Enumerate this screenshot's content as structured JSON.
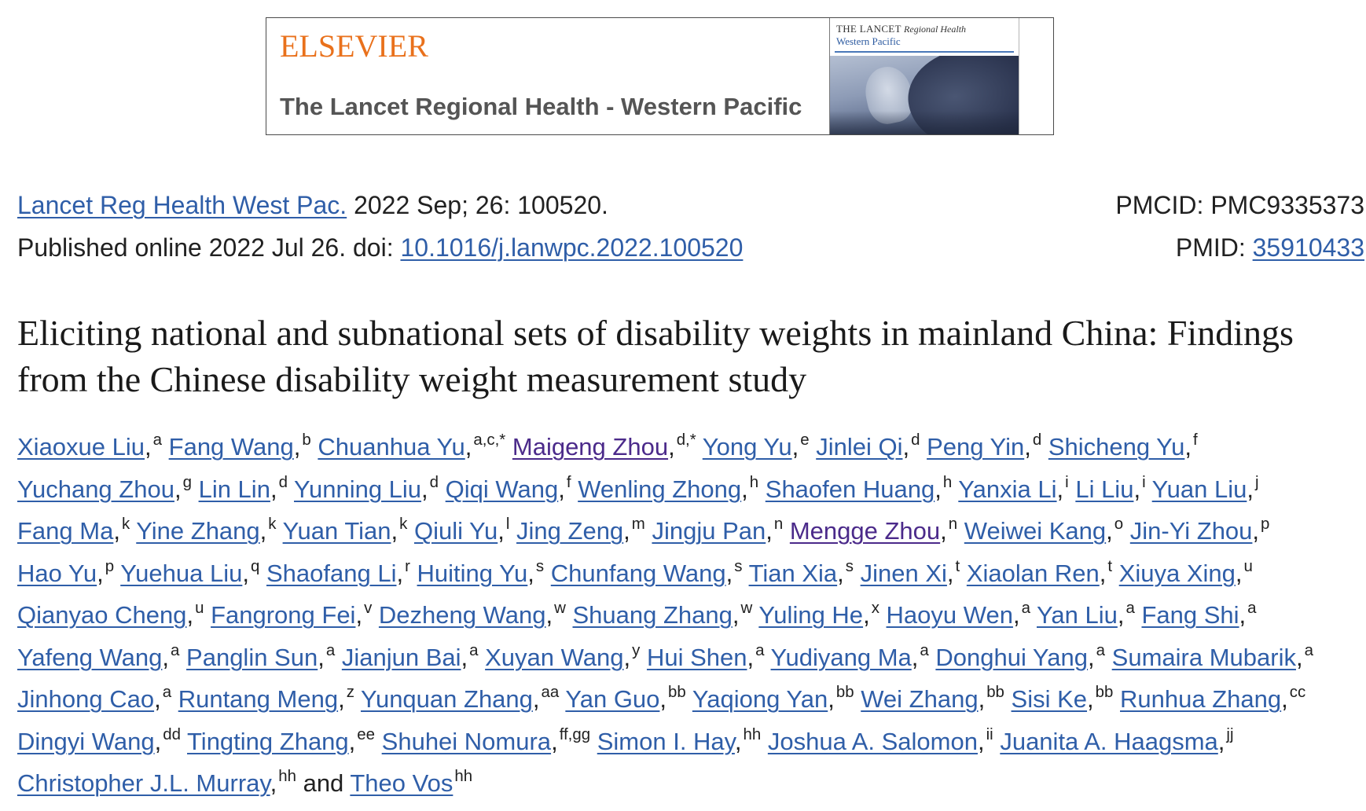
{
  "colors": {
    "link": "#2f5ea8",
    "visited_link": "#4b2a8a",
    "publisher_orange": "#e9711c",
    "journal_gray": "#555555",
    "cover_blue": "#2c5aa0"
  },
  "banner": {
    "publisher_logo": "ELSEVIER",
    "journal_name": "The Lancet Regional Health - Western Pacific",
    "cover": {
      "masthead_caps": "THE LANCET",
      "masthead_italic": "Regional Health",
      "edition": "Western Pacific"
    }
  },
  "citation": {
    "journal_link": "Lancet Reg Health West Pac.",
    "issue": "2022 Sep; 26: 100520.",
    "published": "Published online 2022 Jul 26. doi:",
    "doi": "10.1016/j.lanwpc.2022.100520",
    "pmcid": "PMCID: PMC9335373",
    "pmid_label": "PMID:",
    "pmid": "35910433"
  },
  "title": "Eliciting national and subnational sets of disability weights in mainland China: Findings from the Chinese disability weight measurement study",
  "author_separator": ",",
  "author_conjunction": "and",
  "authors": [
    {
      "name": "Xiaoxue Liu",
      "aff": "a"
    },
    {
      "name": "Fang Wang",
      "aff": "b"
    },
    {
      "name": "Chuanhua Yu",
      "aff": "a,c,*"
    },
    {
      "name": "Maigeng Zhou",
      "aff": "d,*",
      "visited": true
    },
    {
      "name": "Yong Yu",
      "aff": "e"
    },
    {
      "name": "Jinlei Qi",
      "aff": "d"
    },
    {
      "name": "Peng Yin",
      "aff": "d"
    },
    {
      "name": "Shicheng Yu",
      "aff": "f"
    },
    {
      "name": "Yuchang Zhou",
      "aff": "g"
    },
    {
      "name": "Lin Lin",
      "aff": "d"
    },
    {
      "name": "Yunning Liu",
      "aff": "d"
    },
    {
      "name": "Qiqi Wang",
      "aff": "f"
    },
    {
      "name": "Wenling Zhong",
      "aff": "h"
    },
    {
      "name": "Shaofen Huang",
      "aff": "h"
    },
    {
      "name": "Yanxia Li",
      "aff": "i"
    },
    {
      "name": "Li Liu",
      "aff": "i"
    },
    {
      "name": "Yuan Liu",
      "aff": "j"
    },
    {
      "name": "Fang Ma",
      "aff": "k"
    },
    {
      "name": "Yine Zhang",
      "aff": "k"
    },
    {
      "name": "Yuan Tian",
      "aff": "k"
    },
    {
      "name": "Qiuli Yu",
      "aff": "l"
    },
    {
      "name": "Jing Zeng",
      "aff": "m"
    },
    {
      "name": "Jingju Pan",
      "aff": "n"
    },
    {
      "name": "Mengge Zhou",
      "aff": "n",
      "visited": true
    },
    {
      "name": "Weiwei Kang",
      "aff": "o"
    },
    {
      "name": "Jin-Yi Zhou",
      "aff": "p"
    },
    {
      "name": "Hao Yu",
      "aff": "p"
    },
    {
      "name": "Yuehua Liu",
      "aff": "q"
    },
    {
      "name": "Shaofang Li",
      "aff": "r"
    },
    {
      "name": "Huiting Yu",
      "aff": "s"
    },
    {
      "name": "Chunfang Wang",
      "aff": "s"
    },
    {
      "name": "Tian Xia",
      "aff": "s"
    },
    {
      "name": "Jinen Xi",
      "aff": "t"
    },
    {
      "name": "Xiaolan Ren",
      "aff": "t"
    },
    {
      "name": "Xiuya Xing",
      "aff": "u"
    },
    {
      "name": "Qianyao Cheng",
      "aff": "u"
    },
    {
      "name": "Fangrong Fei",
      "aff": "v"
    },
    {
      "name": "Dezheng Wang",
      "aff": "w"
    },
    {
      "name": "Shuang Zhang",
      "aff": "w"
    },
    {
      "name": "Yuling He",
      "aff": "x"
    },
    {
      "name": "Haoyu Wen",
      "aff": "a"
    },
    {
      "name": "Yan Liu",
      "aff": "a"
    },
    {
      "name": "Fang Shi",
      "aff": "a"
    },
    {
      "name": "Yafeng Wang",
      "aff": "a"
    },
    {
      "name": "Panglin Sun",
      "aff": "a"
    },
    {
      "name": "Jianjun Bai",
      "aff": "a"
    },
    {
      "name": "Xuyan Wang",
      "aff": "y"
    },
    {
      "name": "Hui Shen",
      "aff": "a"
    },
    {
      "name": "Yudiyang Ma",
      "aff": "a"
    },
    {
      "name": "Donghui Yang",
      "aff": "a"
    },
    {
      "name": "Sumaira Mubarik",
      "aff": "a"
    },
    {
      "name": "Jinhong Cao",
      "aff": "a"
    },
    {
      "name": "Runtang Meng",
      "aff": "z"
    },
    {
      "name": "Yunquan Zhang",
      "aff": "aa"
    },
    {
      "name": "Yan Guo",
      "aff": "bb"
    },
    {
      "name": "Yaqiong Yan",
      "aff": "bb"
    },
    {
      "name": "Wei Zhang",
      "aff": "bb"
    },
    {
      "name": "Sisi Ke",
      "aff": "bb"
    },
    {
      "name": "Runhua Zhang",
      "aff": "cc"
    },
    {
      "name": "Dingyi Wang",
      "aff": "dd"
    },
    {
      "name": "Tingting Zhang",
      "aff": "ee"
    },
    {
      "name": "Shuhei Nomura",
      "aff": "ff,gg"
    },
    {
      "name": "Simon I. Hay",
      "aff": "hh"
    },
    {
      "name": "Joshua A. Salomon",
      "aff": "ii"
    },
    {
      "name": "Juanita A. Haagsma",
      "aff": "jj"
    },
    {
      "name": "Christopher J.L. Murray",
      "aff": "hh"
    },
    {
      "name": "Theo Vos",
      "aff": "hh"
    }
  ]
}
